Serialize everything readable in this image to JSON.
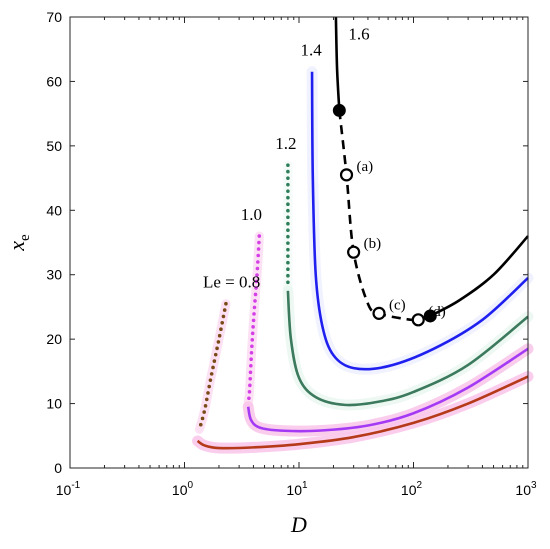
{
  "chart_data": {
    "type": "line",
    "xlabel": "D",
    "ylabel": "x",
    "ylabel_sub": "e",
    "x_scale": "log",
    "xlim": [
      0.1,
      1000
    ],
    "ylim": [
      0,
      70
    ],
    "x_ticks": [
      {
        "value": 0.1,
        "base": "10",
        "exp": "-1"
      },
      {
        "value": 1,
        "base": "10",
        "exp": "0"
      },
      {
        "value": 10,
        "base": "10",
        "exp": "1"
      },
      {
        "value": 100,
        "base": "10",
        "exp": "2"
      },
      {
        "value": 1000,
        "base": "10",
        "exp": "3"
      }
    ],
    "y_ticks": [
      0,
      10,
      20,
      30,
      40,
      50,
      60,
      70
    ],
    "grid": false,
    "series": [
      {
        "name": "Le = 0.8",
        "color": "#b53a1a",
        "halo": "#f9c4ea",
        "dotted": {
          "color": "#7a4a17",
          "points": [
            [
              2.3,
              25.5
            ],
            [
              2.0,
              20
            ],
            [
              1.7,
              14
            ],
            [
              1.5,
              9
            ],
            [
              1.35,
              6
            ]
          ]
        },
        "solid": [
          [
            1.3,
            4.2
          ],
          [
            1.5,
            3.5
          ],
          [
            2,
            3.1
          ],
          [
            4,
            3.2
          ],
          [
            10,
            3.7
          ],
          [
            30,
            4.8
          ],
          [
            100,
            7
          ],
          [
            300,
            10
          ],
          [
            1000,
            14.2
          ]
        ]
      },
      {
        "name": "1.0",
        "color": "#a53af5",
        "halo": "#f9c4ea",
        "dotted": {
          "color": "#d53fe6",
          "points": [
            [
              4.5,
              36
            ],
            [
              4.3,
              30
            ],
            [
              4.05,
              24
            ],
            [
              3.85,
              18
            ],
            [
              3.7,
              12
            ],
            [
              3.6,
              10
            ]
          ]
        },
        "solid": [
          [
            3.6,
            9.5
          ],
          [
            3.8,
            7.5
          ],
          [
            4.5,
            6.3
          ],
          [
            7,
            5.8
          ],
          [
            15,
            5.8
          ],
          [
            40,
            6.6
          ],
          [
            100,
            8.5
          ],
          [
            300,
            12.5
          ],
          [
            1000,
            18.5
          ]
        ]
      },
      {
        "name": "1.2",
        "color": "#3b7a5c",
        "halo": "#eaf7f1",
        "dotted": {
          "color": "#2f7e5a",
          "points": [
            [
              8,
              47
            ],
            [
              8,
              40
            ],
            [
              8,
              34
            ],
            [
              8,
              28
            ]
          ]
        },
        "solid": [
          [
            8,
            27.5
          ],
          [
            8.5,
            20
          ],
          [
            10,
            14
          ],
          [
            14,
            11
          ],
          [
            25,
            9.8
          ],
          [
            50,
            10.3
          ],
          [
            100,
            11.8
          ],
          [
            300,
            16
          ],
          [
            1000,
            23.5
          ]
        ]
      },
      {
        "name": "1.4",
        "color": "#1f1ff0",
        "halo": "#eef0ff",
        "solid": [
          [
            13,
            61.5
          ],
          [
            13.2,
            45
          ],
          [
            14,
            30
          ],
          [
            16,
            22
          ],
          [
            20,
            17.5
          ],
          [
            30,
            15.5
          ],
          [
            60,
            15.8
          ],
          [
            150,
            18.5
          ],
          [
            400,
            23
          ],
          [
            1000,
            29.5
          ]
        ]
      },
      {
        "name": "1.6",
        "color": "#000000",
        "solid_upper": [
          [
            21,
            70
          ],
          [
            21.5,
            62
          ],
          [
            22.5,
            55.5
          ]
        ],
        "dashed": [
          [
            22.5,
            55.5
          ],
          [
            26,
            45.5
          ],
          [
            30,
            33.5
          ],
          [
            40,
            25.5
          ],
          [
            50,
            24
          ],
          [
            80,
            23.2
          ],
          [
            110,
            23
          ],
          [
            140,
            23.6
          ]
        ],
        "solid_lower": [
          [
            140,
            23.6
          ],
          [
            250,
            26
          ],
          [
            500,
            30
          ],
          [
            1000,
            36
          ]
        ],
        "filled_markers": [
          [
            22.5,
            55.5
          ],
          [
            140,
            23.6
          ]
        ],
        "open_markers": [
          {
            "label": "(a)",
            "x": 26,
            "y": 45.5
          },
          {
            "label": "(b)",
            "x": 30,
            "y": 33.5
          },
          {
            "label": "(c)",
            "x": 50,
            "y": 24
          },
          {
            "label": "(d)",
            "x": 110,
            "y": 23
          }
        ]
      }
    ],
    "curve_labels": [
      {
        "text": "Le = 0.8",
        "x": 1.45,
        "y": 28
      },
      {
        "text": "1.0",
        "x": 3.1,
        "y": 38.5
      },
      {
        "text": "1.2",
        "x": 6.2,
        "y": 49.5
      },
      {
        "text": "1.4",
        "x": 10.3,
        "y": 64
      },
      {
        "text": "1.6",
        "x": 27,
        "y": 66.5
      }
    ]
  }
}
